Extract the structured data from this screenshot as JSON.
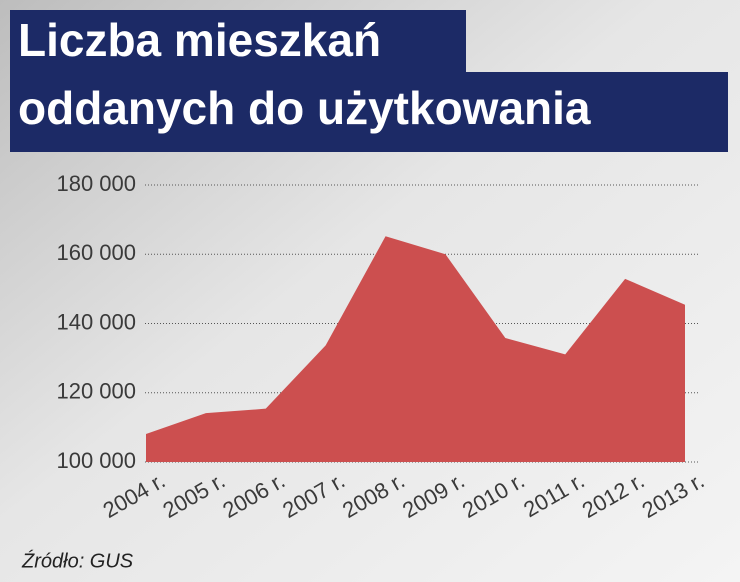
{
  "chart_data": {
    "type": "area",
    "title": [
      "Liczba mieszkań",
      "oddanych do użytkowania"
    ],
    "categories": [
      "2004 r.",
      "2005 r.",
      "2006 r.",
      "2007 r.",
      "2008 r.",
      "2009 r.",
      "2010 r.",
      "2011 r.",
      "2012 r.",
      "2013 r."
    ],
    "values": [
      108100,
      114100,
      115400,
      133700,
      165200,
      160000,
      135800,
      131100,
      152900,
      145400
    ],
    "color": "#cc4f4f",
    "ylim": [
      100000,
      180000
    ],
    "yticks": [
      {
        "value": 100000,
        "label": "100 000"
      },
      {
        "value": 120000,
        "label": "120 000"
      },
      {
        "value": 140000,
        "label": "140 000"
      },
      {
        "value": 160000,
        "label": "160 000"
      },
      {
        "value": 180000,
        "label": "180 000"
      }
    ],
    "grid": true,
    "source": "Źródło: GUS"
  }
}
